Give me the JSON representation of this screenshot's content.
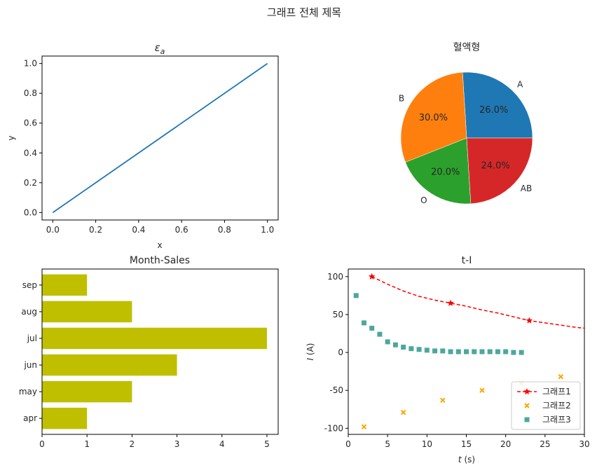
{
  "figure": {
    "suptitle": "그래프 전체 제목"
  },
  "chart_data": [
    {
      "type": "line",
      "title_base": "ε",
      "title_sub": "a",
      "xlabel": "x",
      "ylabel": "y",
      "x": [
        0.0,
        1.0
      ],
      "y": [
        0.0,
        1.0
      ],
      "xlim": [
        -0.05,
        1.05
      ],
      "ylim": [
        -0.05,
        1.05
      ],
      "xticks": [
        0.0,
        0.2,
        0.4,
        0.6,
        0.8,
        1.0
      ],
      "xtick_labels": [
        "0.0",
        "0.2",
        "0.4",
        "0.6",
        "0.8",
        "1.0"
      ],
      "yticks": [
        0.0,
        0.2,
        0.4,
        0.6,
        0.8,
        1.0
      ],
      "ytick_labels": [
        "0.0",
        "0.2",
        "0.4",
        "0.6",
        "0.8",
        "1.0"
      ],
      "color": "#1f77b4"
    },
    {
      "type": "pie",
      "title": "혈액형",
      "labels": [
        "A",
        "B",
        "O",
        "AB"
      ],
      "values": [
        26,
        30,
        20,
        24
      ],
      "pct_labels": [
        "26.0%",
        "30.0%",
        "20.0%",
        "24.0%"
      ],
      "colors": [
        "#1f77b4",
        "#ff7f0e",
        "#2ca02c",
        "#d62728"
      ]
    },
    {
      "type": "bar",
      "orientation": "horizontal",
      "title": "Month-Sales",
      "categories": [
        "apr",
        "may",
        "jun",
        "jul",
        "aug",
        "sep"
      ],
      "values": [
        1,
        2,
        3,
        5,
        2,
        1
      ],
      "xlim": [
        0,
        5.25
      ],
      "xticks": [
        0,
        1,
        2,
        3,
        4,
        5
      ],
      "xtick_labels": [
        "0",
        "1",
        "2",
        "3",
        "4",
        "5"
      ],
      "color": "#bfbf00"
    },
    {
      "type": "scatter",
      "title": "t-I",
      "xlabel_var": "t",
      "xlabel_unit": " (s)",
      "ylabel_var": "I",
      "ylabel_unit": " (A)",
      "xlim": [
        0,
        30
      ],
      "ylim": [
        -108,
        110
      ],
      "xticks": [
        0,
        5,
        10,
        15,
        20,
        25,
        30
      ],
      "xtick_labels": [
        "0",
        "5",
        "10",
        "15",
        "20",
        "25",
        "30"
      ],
      "yticks": [
        100,
        50,
        0,
        -50,
        -100
      ],
      "ytick_labels": [
        "100",
        "50",
        "0",
        "-50",
        "-100"
      ],
      "legend_position": "lower-right",
      "series": [
        {
          "name": "그래프1",
          "style": "dashed-line-star",
          "color": "#ff0000",
          "curve_x": [
            3,
            5,
            7,
            9,
            11,
            13,
            15,
            17,
            19,
            21,
            23,
            25,
            27,
            29,
            30
          ],
          "curve_y": [
            100,
            90,
            81,
            74,
            69,
            65,
            61,
            56,
            52,
            47,
            42,
            39,
            36,
            33,
            32
          ],
          "marker_x": [
            3,
            13,
            23
          ],
          "marker_y": [
            100,
            65,
            42
          ]
        },
        {
          "name": "그래프2",
          "style": "x-marker",
          "color": "#ffa500",
          "x": [
            2,
            7,
            12,
            17,
            22,
            27
          ],
          "y": [
            -98,
            -79,
            -63,
            -50,
            -41,
            -32
          ]
        },
        {
          "name": "그래프3",
          "style": "square-marker",
          "color": "#4ca79e",
          "x": [
            1,
            2,
            3,
            4,
            5,
            6,
            7,
            8,
            9,
            10,
            11,
            12,
            13,
            14,
            15,
            16,
            17,
            18,
            19,
            20,
            21,
            22
          ],
          "y": [
            75,
            39,
            32,
            24,
            14,
            10,
            7,
            5,
            4,
            3,
            2,
            2,
            1,
            1,
            1,
            1,
            1,
            1,
            1,
            1,
            0,
            0
          ]
        }
      ]
    }
  ]
}
